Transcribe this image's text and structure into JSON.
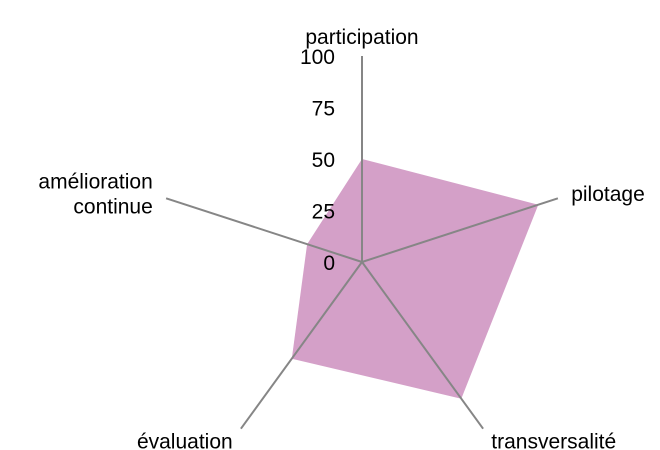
{
  "chart_data": {
    "type": "radar",
    "title": "",
    "categories": [
      "participation",
      "pilotage",
      "transversalité",
      "évaluation",
      "amélioration\ncontinue"
    ],
    "series": [
      {
        "values": [
          50,
          90,
          82,
          58,
          28
        ]
      }
    ],
    "ticks": [
      "0",
      "25",
      "50",
      "75",
      "100"
    ],
    "rlim": [
      0,
      100
    ],
    "grid": false,
    "legend": "none"
  },
  "colors": {
    "fill": "#d4a0c8",
    "axis": "#868686"
  }
}
